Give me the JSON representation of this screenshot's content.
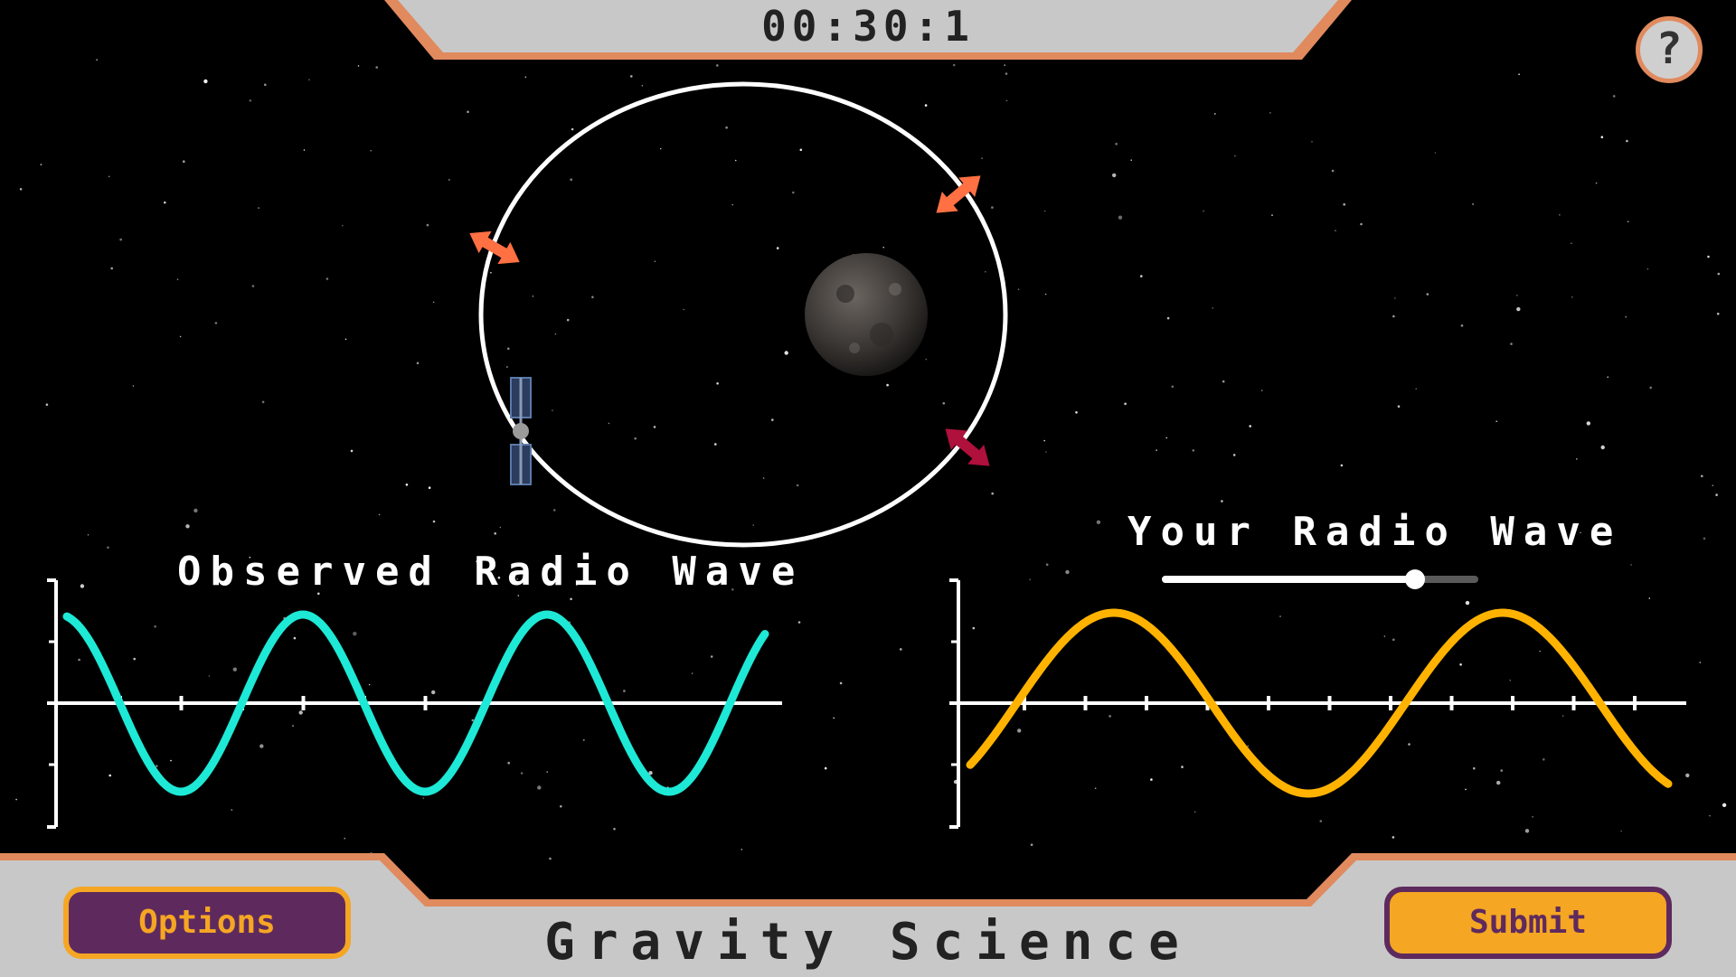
{
  "timer": {
    "text": "00:30:1"
  },
  "help": {
    "label": "?"
  },
  "app": {
    "title": "Gravity Science"
  },
  "buttons": {
    "options": "Options",
    "submit": "Submit"
  },
  "observed_wave": {
    "title": "Observed Radio Wave",
    "color": "#1de9d6"
  },
  "your_wave": {
    "title": "Your Radio Wave",
    "color": "#ffb300",
    "slider_value": 0.8
  },
  "colors": {
    "frame": "#c8c8c8",
    "frame_border": "#e08a5e",
    "arrow_orange": "#ff7043",
    "arrow_crimson": "#b0103c",
    "button_purple": "#5e2a5e",
    "button_orange": "#f5a623"
  },
  "icons": [
    "help-icon",
    "spacecraft-icon",
    "asteroid-icon",
    "orbit-arrow-icon"
  ]
}
